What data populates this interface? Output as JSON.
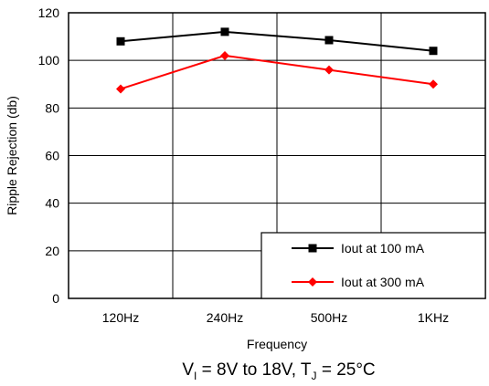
{
  "chart_data": {
    "type": "line",
    "categories": [
      "120Hz",
      "240Hz",
      "500Hz",
      "1KHz"
    ],
    "series": [
      {
        "name": "Iout at 100 mA",
        "values": [
          108,
          112,
          108.5,
          104
        ],
        "color": "#000000",
        "marker": "square"
      },
      {
        "name": "Iout at 300 mA",
        "values": [
          88,
          102,
          96,
          90
        ],
        "color": "#ff0000",
        "marker": "diamond"
      }
    ],
    "xlabel": "Frequency",
    "ylabel": "Ripple Rejection (db)",
    "ylim": [
      0,
      120
    ],
    "yticks": [
      0,
      20,
      40,
      60,
      80,
      100,
      120
    ],
    "grid": true,
    "legend_position": "bottom-right"
  },
  "caption": {
    "v_main": "V",
    "v_sub": "I",
    "v_text": " = 8V to 18V, T",
    "t_sub": "J",
    "t_text": " = 25°C"
  }
}
